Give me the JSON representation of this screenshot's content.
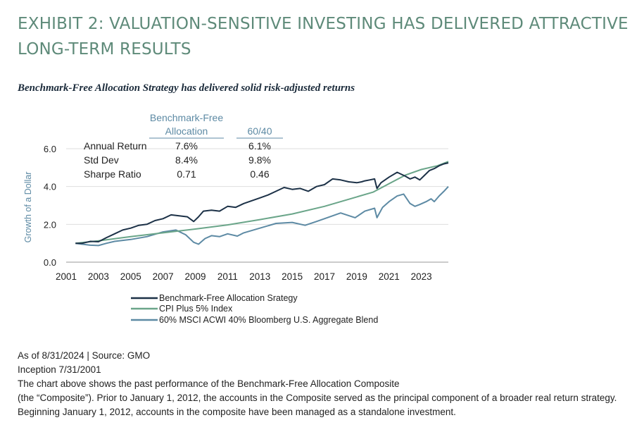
{
  "header": {
    "title": "EXHIBIT 2: VALUATION-SENSITIVE INVESTING HAS DELIVERED ATTRACTIVE LONG-TERM RESULTS",
    "subtitle": "Benchmark-Free Allocation Strategy has delivered solid risk-adjusted returns"
  },
  "stats_table": {
    "col1_header": [
      "Benchmark-Free",
      "Allocation"
    ],
    "col2_header": "60/40",
    "rows": [
      {
        "label": "Annual Return",
        "col1": "7.6%",
        "col2": "6.1%"
      },
      {
        "label": "Std Dev",
        "col1": "8.4%",
        "col2": "9.8%"
      },
      {
        "label": "Sharpe Ratio",
        "col1": "0.71",
        "col2": "0.46"
      }
    ]
  },
  "colors": {
    "benchmark_free": "#1c3147",
    "cpi_plus_5": "#6aa589",
    "blend_60_40": "#5d8aa4",
    "title": "#5e8a79",
    "grid": "#dedede"
  },
  "chart_data": {
    "type": "line",
    "ylabel": "Growth of a Dollar",
    "xlabel": "",
    "ylim": [
      0,
      6
    ],
    "xlim": [
      2001,
      2024.67
    ],
    "yticks": [
      "0.0",
      "2.0",
      "4.0",
      "6.0"
    ],
    "xticks": [
      "2001",
      "2003",
      "2005",
      "2007",
      "2009",
      "2011",
      "2013",
      "2015",
      "2017",
      "2019",
      "2021",
      "2023"
    ],
    "grid": true,
    "legend_position": "bottom-center",
    "series": [
      {
        "name": "Benchmark-Free Allocation Srategy",
        "color_key": "benchmark_free",
        "points": [
          [
            2001.58,
            1.0
          ],
          [
            2002.0,
            1.0
          ],
          [
            2002.5,
            1.1
          ],
          [
            2003.0,
            1.08
          ],
          [
            2003.5,
            1.3
          ],
          [
            2004.0,
            1.5
          ],
          [
            2004.5,
            1.7
          ],
          [
            2005.0,
            1.8
          ],
          [
            2005.5,
            1.95
          ],
          [
            2006.0,
            2.0
          ],
          [
            2006.5,
            2.2
          ],
          [
            2007.0,
            2.3
          ],
          [
            2007.5,
            2.5
          ],
          [
            2008.0,
            2.45
          ],
          [
            2008.5,
            2.4
          ],
          [
            2008.9,
            2.15
          ],
          [
            2009.2,
            2.4
          ],
          [
            2009.5,
            2.7
          ],
          [
            2010.0,
            2.75
          ],
          [
            2010.5,
            2.7
          ],
          [
            2011.0,
            2.95
          ],
          [
            2011.5,
            2.9
          ],
          [
            2012.0,
            3.1
          ],
          [
            2012.5,
            3.25
          ],
          [
            2013.0,
            3.4
          ],
          [
            2013.5,
            3.55
          ],
          [
            2014.0,
            3.75
          ],
          [
            2014.5,
            3.95
          ],
          [
            2015.0,
            3.85
          ],
          [
            2015.5,
            3.9
          ],
          [
            2016.0,
            3.75
          ],
          [
            2016.5,
            4.0
          ],
          [
            2017.0,
            4.1
          ],
          [
            2017.5,
            4.4
          ],
          [
            2018.0,
            4.35
          ],
          [
            2018.5,
            4.25
          ],
          [
            2019.0,
            4.2
          ],
          [
            2019.3,
            4.25
          ],
          [
            2019.5,
            4.3
          ],
          [
            2019.8,
            4.35
          ],
          [
            2020.1,
            4.4
          ],
          [
            2020.25,
            3.9
          ],
          [
            2020.5,
            4.2
          ],
          [
            2021.0,
            4.5
          ],
          [
            2021.5,
            4.75
          ],
          [
            2022.0,
            4.55
          ],
          [
            2022.3,
            4.4
          ],
          [
            2022.6,
            4.5
          ],
          [
            2022.9,
            4.35
          ],
          [
            2023.2,
            4.6
          ],
          [
            2023.5,
            4.85
          ],
          [
            2023.8,
            4.95
          ],
          [
            2024.1,
            5.1
          ],
          [
            2024.4,
            5.2
          ],
          [
            2024.67,
            5.25
          ]
        ]
      },
      {
        "name": "CPI Plus 5% Index",
        "color_key": "cpi_plus_5",
        "points": [
          [
            2001.58,
            1.0
          ],
          [
            2003.0,
            1.13
          ],
          [
            2005.0,
            1.35
          ],
          [
            2007.0,
            1.55
          ],
          [
            2009.0,
            1.75
          ],
          [
            2011.0,
            1.97
          ],
          [
            2013.0,
            2.25
          ],
          [
            2015.0,
            2.55
          ],
          [
            2017.0,
            2.95
          ],
          [
            2019.0,
            3.45
          ],
          [
            2020.0,
            3.7
          ],
          [
            2021.0,
            4.15
          ],
          [
            2022.0,
            4.6
          ],
          [
            2023.0,
            4.9
          ],
          [
            2024.0,
            5.1
          ],
          [
            2024.67,
            5.32
          ]
        ]
      },
      {
        "name": "60% MSCI ACWI 40% Bloomberg U.S. Aggregate Blend",
        "color_key": "blend_60_40",
        "points": [
          [
            2001.58,
            1.0
          ],
          [
            2002.0,
            0.95
          ],
          [
            2002.5,
            0.9
          ],
          [
            2003.0,
            0.88
          ],
          [
            2003.5,
            1.0
          ],
          [
            2004.0,
            1.1
          ],
          [
            2005.0,
            1.2
          ],
          [
            2006.0,
            1.35
          ],
          [
            2007.0,
            1.6
          ],
          [
            2007.8,
            1.7
          ],
          [
            2008.4,
            1.45
          ],
          [
            2008.9,
            1.05
          ],
          [
            2009.2,
            0.95
          ],
          [
            2009.6,
            1.25
          ],
          [
            2010.0,
            1.4
          ],
          [
            2010.5,
            1.35
          ],
          [
            2011.0,
            1.5
          ],
          [
            2011.6,
            1.38
          ],
          [
            2012.0,
            1.55
          ],
          [
            2013.0,
            1.8
          ],
          [
            2014.0,
            2.05
          ],
          [
            2015.0,
            2.1
          ],
          [
            2015.8,
            1.95
          ],
          [
            2016.5,
            2.15
          ],
          [
            2017.0,
            2.3
          ],
          [
            2018.0,
            2.6
          ],
          [
            2018.9,
            2.35
          ],
          [
            2019.5,
            2.7
          ],
          [
            2020.1,
            2.85
          ],
          [
            2020.25,
            2.35
          ],
          [
            2020.6,
            2.9
          ],
          [
            2021.0,
            3.2
          ],
          [
            2021.5,
            3.5
          ],
          [
            2021.9,
            3.6
          ],
          [
            2022.3,
            3.1
          ],
          [
            2022.6,
            2.95
          ],
          [
            2022.9,
            3.05
          ],
          [
            2023.3,
            3.2
          ],
          [
            2023.6,
            3.35
          ],
          [
            2023.8,
            3.2
          ],
          [
            2024.1,
            3.5
          ],
          [
            2024.4,
            3.75
          ],
          [
            2024.67,
            4.0
          ]
        ]
      }
    ]
  },
  "footnote": {
    "line1": "As of 8/31/2024 | Source: GMO",
    "line2": "Inception 7/31/2001",
    "line3": "The chart above shows the past performance of the Benchmark-Free Allocation Composite",
    "line4": "(the “Composite”). Prior to January 1, 2012, the accounts in the Composite served as the principal component of a broader real return strategy. Beginning January 1, 2012, accounts in the composite have been managed as a standalone investment."
  }
}
